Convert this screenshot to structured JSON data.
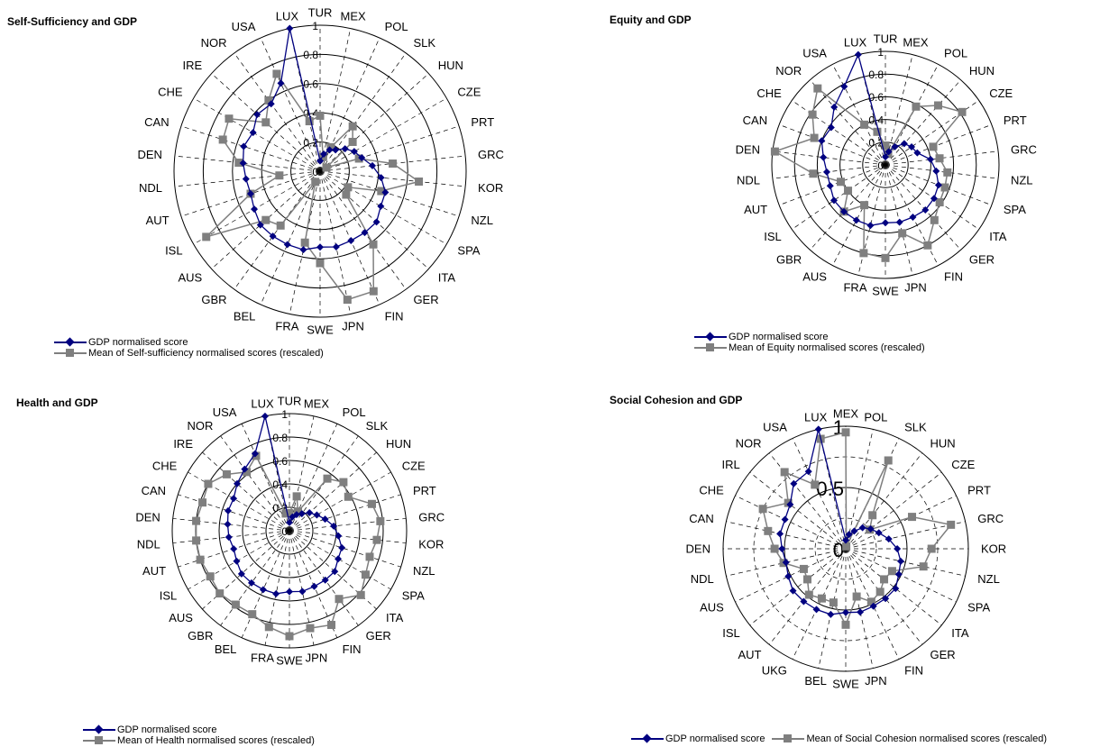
{
  "colors": {
    "gdp": "#000080",
    "mean": "#7f7f7f",
    "grid": "#000000"
  },
  "chart_data": [
    {
      "type": "radar",
      "title": "Self-Sufficiency and GDP",
      "rings": [
        0,
        0.2,
        0.4,
        0.6,
        0.8,
        1
      ],
      "ring_labels": [
        "0",
        "0.2",
        "0.4",
        "0.6",
        "0.8",
        "1"
      ],
      "categories": [
        "TUR",
        "MEX",
        "POL",
        "SLK",
        "HUN",
        "CZE",
        "PRT",
        "GRC",
        "KOR",
        "NZL",
        "SPA",
        "ITA",
        "GER",
        "FIN",
        "JPN",
        "SWE",
        "FRA",
        "BEL",
        "GBR",
        "AUS",
        "ISL",
        "AUT",
        "NDL",
        "DEN",
        "CAN",
        "CHE",
        "IRE",
        "NOR",
        "USA",
        "LUX"
      ],
      "series": [
        {
          "name": "GDP normalised score",
          "marker": "diamond",
          "values": [
            0.07,
            0.12,
            0.16,
            0.18,
            0.23,
            0.27,
            0.3,
            0.36,
            0.42,
            0.47,
            0.48,
            0.52,
            0.52,
            0.52,
            0.53,
            0.52,
            0.55,
            0.55,
            0.55,
            0.55,
            0.52,
            0.5,
            0.51,
            0.53,
            0.55,
            0.53,
            0.58,
            0.57,
            0.66,
            1.0
          ]
        },
        {
          "name": "Mean of Self-sufficiency normalised scores (rescaled)",
          "marker": "square",
          "values": [
            0.38,
            0.1,
            0.18,
            0.38,
            0.3,
            0.05,
            0.28,
            0.5,
            0.68,
            0.44,
            0.22,
            0.24,
            0.62,
            0.9,
            0.9,
            0.63,
            0.5,
            0.08,
            0.46,
            0.5,
            0.9,
            0.5,
            0.28,
            0.56,
            0.7,
            0.72,
            0.5,
            0.6,
            0.73,
            0.35
          ]
        }
      ]
    },
    {
      "type": "radar",
      "title": "Equity and GDP",
      "rings": [
        0,
        0.2,
        0.4,
        0.6,
        0.8,
        1
      ],
      "ring_labels": [
        "0",
        "0.2",
        "0.4",
        "0.6",
        "0.8",
        "1"
      ],
      "categories": [
        "TUR",
        "MEX",
        "POL",
        "HUN",
        "CZE",
        "PRT",
        "GRC",
        "NZL",
        "SPA",
        "ITA",
        "GER",
        "FIN",
        "JPN",
        "SWE",
        "FRA",
        "AUS",
        "GBR",
        "ISL",
        "AUT",
        "NDL",
        "DEN",
        "CAN",
        "CHE",
        "NOR",
        "USA",
        "LUX"
      ],
      "series": [
        {
          "name": "GDP normalised score",
          "marker": "diamond",
          "values": [
            0.07,
            0.12,
            0.18,
            0.25,
            0.28,
            0.3,
            0.4,
            0.45,
            0.5,
            0.52,
            0.53,
            0.52,
            0.52,
            0.51,
            0.55,
            0.55,
            0.55,
            0.55,
            0.52,
            0.52,
            0.55,
            0.6,
            0.58,
            0.68,
            0.78,
            1.0
          ]
        },
        {
          "name": "Mean of Equity normalised scores (rescaled)",
          "marker": "square",
          "values": [
            0.17,
            0.1,
            0.58,
            0.7,
            0.82,
            0.45,
            0.48,
            0.55,
            0.56,
            0.58,
            0.65,
            0.8,
            0.62,
            0.82,
            0.8,
            0.4,
            0.55,
            0.4,
            0.42,
            0.64,
            0.98,
            0.67,
            0.78,
            0.9,
            0.4,
            0.3
          ]
        }
      ]
    },
    {
      "type": "radar",
      "title": "Health and GDP",
      "rings": [
        0,
        0.2,
        0.4,
        0.6,
        0.8,
        1
      ],
      "ring_labels": [
        "0",
        "0.2",
        "0.4",
        "0.6",
        "0.8",
        "1"
      ],
      "categories": [
        "TUR",
        "MEX",
        "POL",
        "SLK",
        "HUN",
        "CZE",
        "PRT",
        "GRC",
        "KOR",
        "NZL",
        "SPA",
        "ITA",
        "GER",
        "FIN",
        "JPN",
        "SWE",
        "FRA",
        "BEL",
        "GBR",
        "AUS",
        "ISL",
        "AUT",
        "NDL",
        "DEN",
        "CAN",
        "CHE",
        "IRE",
        "NOR",
        "USA",
        "LUX"
      ],
      "series": [
        {
          "name": "GDP normalised score",
          "marker": "diamond",
          "values": [
            0.07,
            0.12,
            0.15,
            0.18,
            0.23,
            0.27,
            0.32,
            0.38,
            0.42,
            0.47,
            0.48,
            0.52,
            0.52,
            0.52,
            0.53,
            0.52,
            0.55,
            0.55,
            0.55,
            0.55,
            0.52,
            0.5,
            0.52,
            0.53,
            0.55,
            0.55,
            0.6,
            0.65,
            0.72,
            1.0
          ]
        },
        {
          "name": "Mean of Health normalised scores (rescaled)",
          "marker": "square",
          "values": [
            0.15,
            0.3,
            0.18,
            0.55,
            0.62,
            0.58,
            0.74,
            0.78,
            0.75,
            0.72,
            0.75,
            0.82,
            0.72,
            0.88,
            0.85,
            0.9,
            0.84,
            0.78,
            0.78,
            0.8,
            0.78,
            0.8,
            0.8,
            0.8,
            0.78,
            0.8,
            0.72,
            0.62,
            0.7,
            0.15
          ]
        }
      ]
    },
    {
      "type": "radar",
      "title": "Social Cohesion and GDP",
      "rings": [
        0,
        0.5,
        1
      ],
      "ring_labels": [
        "0",
        "0.5",
        "1"
      ],
      "ring_minor": [
        0.25,
        0.75
      ],
      "categories": [
        "MEX",
        "POL",
        "SLK",
        "HUN",
        "CZE",
        "PRT",
        "GRC",
        "KOR",
        "NZL",
        "SPA",
        "ITA",
        "GER",
        "FIN",
        "JPN",
        "SWE",
        "BEL",
        "UKG",
        "AUT",
        "ISL",
        "AUS",
        "NDL",
        "DEN",
        "CAN",
        "CHE",
        "IRL",
        "NOR",
        "USA",
        "LUX"
      ],
      "series": [
        {
          "name": "GDP normalised score",
          "marker": "diamond",
          "values": [
            0.07,
            0.12,
            0.16,
            0.22,
            0.26,
            0.3,
            0.36,
            0.42,
            0.46,
            0.48,
            0.52,
            0.52,
            0.52,
            0.53,
            0.52,
            0.55,
            0.55,
            0.55,
            0.55,
            0.52,
            0.5,
            0.52,
            0.55,
            0.55,
            0.58,
            0.68,
            0.7,
            1.0
          ]
        },
        {
          "name": "Mean of Social Cohesion normalised scores (rescaled)",
          "marker": "square",
          "values": [
            0.95,
            0.02,
            0.8,
            0.35,
            0.25,
            0.6,
            0.88,
            0.7,
            0.65,
            0.42,
            0.4,
            0.45,
            0.48,
            0.4,
            0.62,
            0.45,
            0.45,
            0.48,
            0.4,
            0.38,
            0.52,
            0.58,
            0.65,
            0.75,
            0.6,
            0.8,
            0.58,
            0.92
          ]
        }
      ]
    }
  ]
}
